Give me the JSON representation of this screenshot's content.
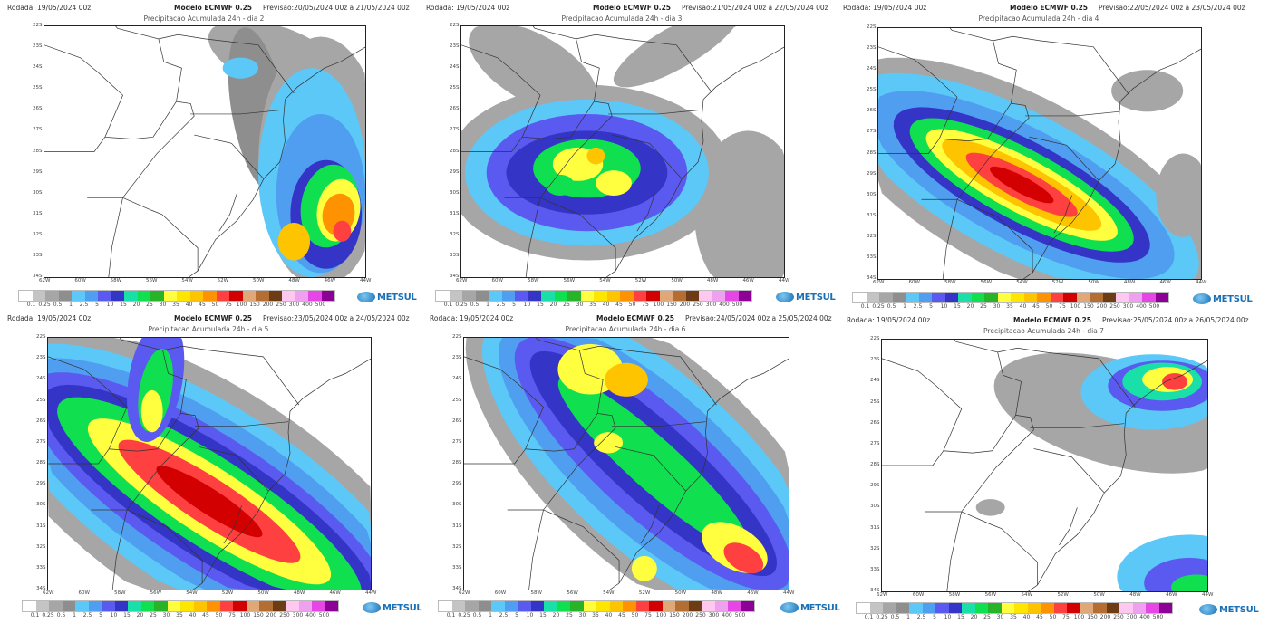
{
  "panels": [
    {
      "rodada": "Rodada: 19/05/2024 00z",
      "modelo": "Modelo ECMWF 0.25",
      "previsao": "Previsao:20/05/2024 00z a 21/05/2024 00z",
      "title": "Precipitacao Acumulada 24h - dia 2"
    },
    {
      "rodada": "Rodada: 19/05/2024 00z",
      "modelo": "Modelo ECMWF 0.25",
      "previsao": "Previsao:21/05/2024 00z a 22/05/2024 00z",
      "title": "Precipitacao Acumulada 24h - dia 3"
    },
    {
      "rodada": "Rodada: 19/05/2024 00z",
      "modelo": "Modelo ECMWF 0.25",
      "previsao": "Previsao:22/05/2024 00z a 23/05/2024 00z",
      "title": "Precipitacao Acumulada 24h - dia 4"
    },
    {
      "rodada": "Rodada: 19/05/2024 00z",
      "modelo": "Modelo ECMWF 0.25",
      "previsao": "Previsao:23/05/2024 00z a 24/05/2024 00z",
      "title": "Precipitacao Acumulada 24h - dia 5"
    },
    {
      "rodada": "Rodada: 19/05/2024 00z",
      "modelo": "Modelo ECMWF 0.25",
      "previsao": "Previsao:24/05/2024 00z a 25/05/2024 00z",
      "title": "Precipitacao Acumulada 24h - dia 6"
    },
    {
      "rodada": "Rodada: 19/05/2024 00z",
      "modelo": "Modelo ECMWF 0.25",
      "previsao": "Previsao:25/05/2024 00z a 26/05/2024 00z",
      "title": "Precipitacao Acumulada 24h - dia 7"
    }
  ],
  "lat_ticks": [
    "22S",
    "23S",
    "24S",
    "25S",
    "26S",
    "27S",
    "28S",
    "29S",
    "30S",
    "31S",
    "32S",
    "33S",
    "34S"
  ],
  "lon_ticks": [
    "62W",
    "60W",
    "58W",
    "56W",
    "54W",
    "52W",
    "50W",
    "48W",
    "46W",
    "44W"
  ],
  "colorbar": {
    "labels": [
      "0.1",
      "0.25",
      "0.5",
      "1",
      "2.5",
      "5",
      "10",
      "15",
      "20",
      "25",
      "30",
      "35",
      "40",
      "45",
      "50",
      "75",
      "100",
      "150",
      "200",
      "250",
      "300",
      "400",
      "500"
    ],
    "colors": [
      "#ffffff",
      "#c4c4c4",
      "#a6a6a6",
      "#8e8e8e",
      "#5cc8f8",
      "#4f9ef0",
      "#5a5af0",
      "#3434c6",
      "#18e0a8",
      "#10e050",
      "#28b428",
      "#ffff40",
      "#ffe600",
      "#ffc400",
      "#ff9200",
      "#ff4040",
      "#d20000",
      "#e0a878",
      "#b46e32",
      "#6e3c14",
      "#ffc8f0",
      "#f0a0f0",
      "#e646e6",
      "#8c0096"
    ]
  },
  "logo": {
    "text": "METSUL",
    "icon": "globe-icon"
  }
}
